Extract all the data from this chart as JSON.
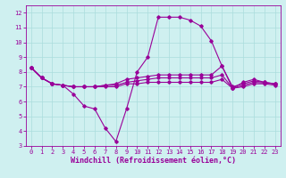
{
  "xlabel": "Windchill (Refroidissement éolien,°C)",
  "x_hours": [
    0,
    1,
    2,
    3,
    4,
    5,
    6,
    7,
    8,
    9,
    10,
    11,
    12,
    13,
    14,
    15,
    16,
    17,
    18,
    19,
    20,
    21,
    22,
    23
  ],
  "line1": [
    8.3,
    7.6,
    7.2,
    7.1,
    6.5,
    5.7,
    5.5,
    4.2,
    3.3,
    5.5,
    8.0,
    9.0,
    11.7,
    11.7,
    11.7,
    11.5,
    11.1,
    10.1,
    8.4,
    6.9,
    7.3,
    7.5,
    7.3,
    7.2
  ],
  "line2": [
    8.3,
    7.6,
    7.2,
    7.1,
    7.0,
    7.0,
    7.0,
    7.1,
    7.2,
    7.5,
    7.6,
    7.7,
    7.8,
    7.8,
    7.8,
    7.8,
    7.8,
    7.8,
    8.4,
    7.0,
    7.2,
    7.4,
    7.3,
    7.2
  ],
  "line3": [
    8.3,
    7.6,
    7.2,
    7.1,
    7.0,
    7.0,
    7.0,
    7.1,
    7.1,
    7.3,
    7.4,
    7.5,
    7.6,
    7.6,
    7.6,
    7.6,
    7.6,
    7.6,
    7.8,
    6.9,
    7.1,
    7.3,
    7.25,
    7.2
  ],
  "line4": [
    8.3,
    7.6,
    7.2,
    7.1,
    7.0,
    7.0,
    7.0,
    7.0,
    7.0,
    7.2,
    7.2,
    7.3,
    7.3,
    7.3,
    7.3,
    7.3,
    7.3,
    7.3,
    7.5,
    6.9,
    7.0,
    7.2,
    7.2,
    7.1
  ],
  "line_color": "#990099",
  "bg_color": "#cff0f0",
  "grid_color": "#aadddd",
  "ylim": [
    3,
    12.5
  ],
  "yticks": [
    3,
    4,
    5,
    6,
    7,
    8,
    9,
    10,
    11,
    12
  ],
  "xlim": [
    -0.5,
    23.5
  ],
  "xticks": [
    0,
    1,
    2,
    3,
    4,
    5,
    6,
    7,
    8,
    9,
    10,
    11,
    12,
    13,
    14,
    15,
    16,
    17,
    18,
    19,
    20,
    21,
    22,
    23
  ],
  "tick_fontsize": 5.0,
  "label_fontsize": 6.0,
  "markersize": 1.8,
  "linewidth": 0.8
}
